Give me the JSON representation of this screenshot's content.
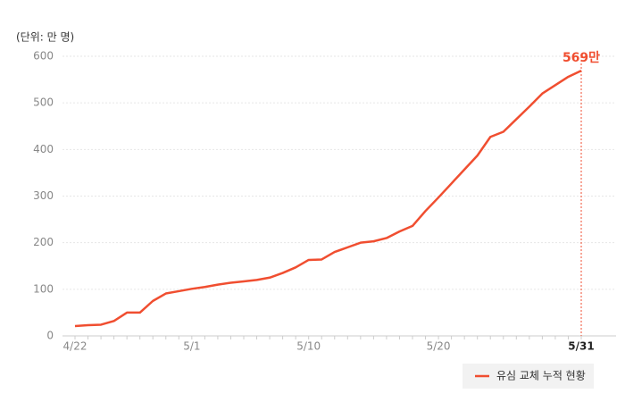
{
  "chart_data": {
    "type": "line",
    "y_label": "(단위: 만 명)",
    "categories": [
      "4/22",
      null,
      null,
      null,
      null,
      null,
      null,
      null,
      null,
      "5/1",
      null,
      null,
      null,
      null,
      null,
      null,
      null,
      null,
      "5/10",
      null,
      null,
      null,
      null,
      null,
      null,
      null,
      null,
      null,
      "5/20",
      null,
      null,
      null,
      null,
      null,
      null,
      null,
      null,
      null,
      null,
      "5/31"
    ],
    "series": [
      {
        "name": "유심 교체 누적 현황",
        "color": "#f04e30",
        "values": [
          21,
          23,
          24,
          32,
          50,
          50,
          75,
          91,
          96,
          101,
          105,
          110,
          114,
          117,
          120,
          125,
          135,
          147,
          163,
          164,
          180,
          190,
          200,
          203,
          210,
          224,
          236,
          268,
          297,
          327,
          357,
          387,
          427,
          438,
          465,
          492,
          520,
          538,
          556,
          569
        ],
        "value_labels": [
          null,
          null,
          null,
          null,
          null,
          null,
          null,
          null,
          null,
          null,
          null,
          null,
          null,
          null,
          null,
          null,
          null,
          null,
          null,
          null,
          null,
          null,
          null,
          null,
          null,
          null,
          null,
          null,
          null,
          null,
          null,
          null,
          null,
          null,
          null,
          null,
          null,
          null,
          null,
          "569만"
        ]
      }
    ],
    "ylim": [
      0,
      600
    ],
    "yticks": [
      0,
      100,
      200,
      300,
      400,
      500,
      600
    ],
    "grid": true,
    "legend": "bottom-right"
  }
}
